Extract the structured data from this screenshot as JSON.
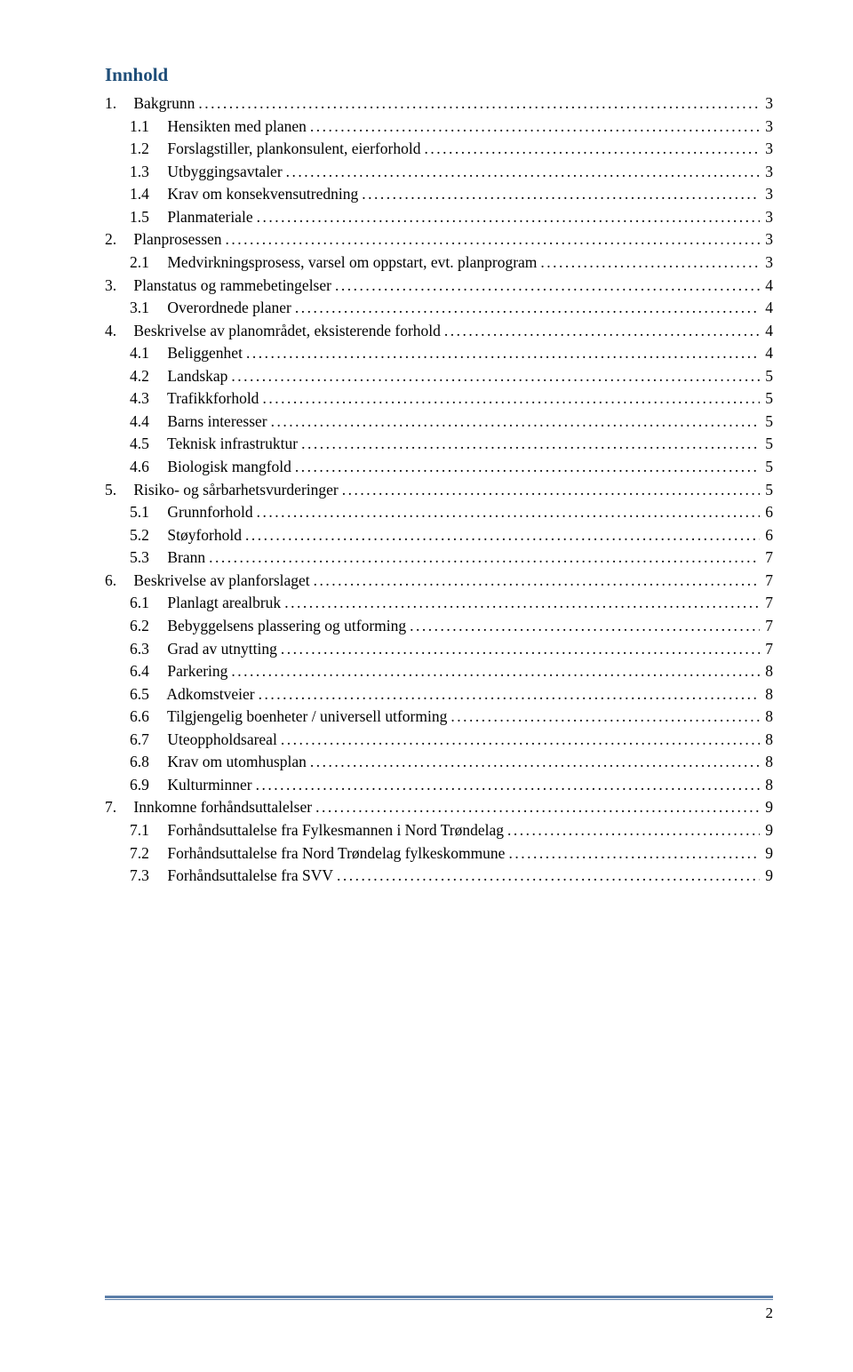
{
  "title": "Innhold",
  "title_color": "#1f4e79",
  "page_number": "2",
  "footer_line_color": "#5b7ea8",
  "toc": [
    {
      "level": 0,
      "num": "1.",
      "text": "Bakgrunn",
      "page": "3"
    },
    {
      "level": 1,
      "num": "1.1",
      "text": "Hensikten med planen",
      "page": "3"
    },
    {
      "level": 1,
      "num": "1.2",
      "text": "Forslagstiller, plankonsulent, eierforhold",
      "page": "3"
    },
    {
      "level": 1,
      "num": "1.3",
      "text": "Utbyggingsavtaler",
      "page": "3"
    },
    {
      "level": 1,
      "num": "1.4",
      "text": "Krav om konsekvensutredning",
      "page": "3"
    },
    {
      "level": 1,
      "num": "1.5",
      "text": "Planmateriale",
      "page": "3"
    },
    {
      "level": 0,
      "num": "2.",
      "text": "Planprosessen",
      "page": "3"
    },
    {
      "level": 1,
      "num": "2.1",
      "text": "Medvirkningsprosess, varsel om oppstart, evt. planprogram",
      "page": "3"
    },
    {
      "level": 0,
      "num": "3.",
      "text": "Planstatus og rammebetingelser",
      "page": "4"
    },
    {
      "level": 1,
      "num": "3.1",
      "text": "Overordnede planer",
      "page": "4"
    },
    {
      "level": 0,
      "num": "4.",
      "text": "Beskrivelse av planområdet, eksisterende forhold",
      "page": "4"
    },
    {
      "level": 1,
      "num": "4.1",
      "text": "Beliggenhet",
      "page": "4"
    },
    {
      "level": 1,
      "num": "4.2",
      "text": "Landskap",
      "page": "5"
    },
    {
      "level": 1,
      "num": "4.3",
      "text": "Trafikkforhold",
      "page": "5"
    },
    {
      "level": 1,
      "num": "4.4",
      "text": "Barns interesser",
      "page": "5"
    },
    {
      "level": 1,
      "num": "4.5",
      "text": "Teknisk infrastruktur",
      "page": "5"
    },
    {
      "level": 1,
      "num": "4.6",
      "text": "Biologisk mangfold",
      "page": "5"
    },
    {
      "level": 0,
      "num": "5.",
      "text": "Risiko- og sårbarhetsvurderinger",
      "page": "5"
    },
    {
      "level": 1,
      "num": "5.1",
      "text": "Grunnforhold",
      "page": "6"
    },
    {
      "level": 1,
      "num": "5.2",
      "text": "Støyforhold",
      "page": "6"
    },
    {
      "level": 1,
      "num": "5.3",
      "text": "Brann",
      "page": "7"
    },
    {
      "level": 0,
      "num": "6.",
      "text": "Beskrivelse av planforslaget",
      "page": "7"
    },
    {
      "level": 1,
      "num": "6.1",
      "text": "Planlagt arealbruk",
      "page": "7"
    },
    {
      "level": 1,
      "num": "6.2",
      "text": "Bebyggelsens plassering og utforming",
      "page": "7"
    },
    {
      "level": 1,
      "num": "6.3",
      "text": "Grad av utnytting",
      "page": "7"
    },
    {
      "level": 1,
      "num": "6.4",
      "text": "Parkering",
      "page": "8"
    },
    {
      "level": 1,
      "num": "6.5",
      "text": "Adkomstveier",
      "page": "8"
    },
    {
      "level": 1,
      "num": "6.6",
      "text": "Tilgjengelig boenheter / universell utforming",
      "page": "8"
    },
    {
      "level": 1,
      "num": "6.7",
      "text": "Uteoppholdsareal",
      "page": "8"
    },
    {
      "level": 1,
      "num": "6.8",
      "text": "Krav om utomhusplan",
      "page": "8"
    },
    {
      "level": 1,
      "num": "6.9",
      "text": "Kulturminner",
      "page": "8"
    },
    {
      "level": 0,
      "num": "7.",
      "text": "Innkomne forhåndsuttalelser",
      "page": "9"
    },
    {
      "level": 1,
      "num": "7.1",
      "text": "Forhåndsuttalelse fra Fylkesmannen i Nord Trøndelag",
      "page": "9"
    },
    {
      "level": 1,
      "num": "7.2",
      "text": "Forhåndsuttalelse fra Nord Trøndelag fylkeskommune",
      "page": "9"
    },
    {
      "level": 1,
      "num": "7.3",
      "text": "Forhåndsuttalelse fra SVV",
      "page": "9"
    }
  ]
}
